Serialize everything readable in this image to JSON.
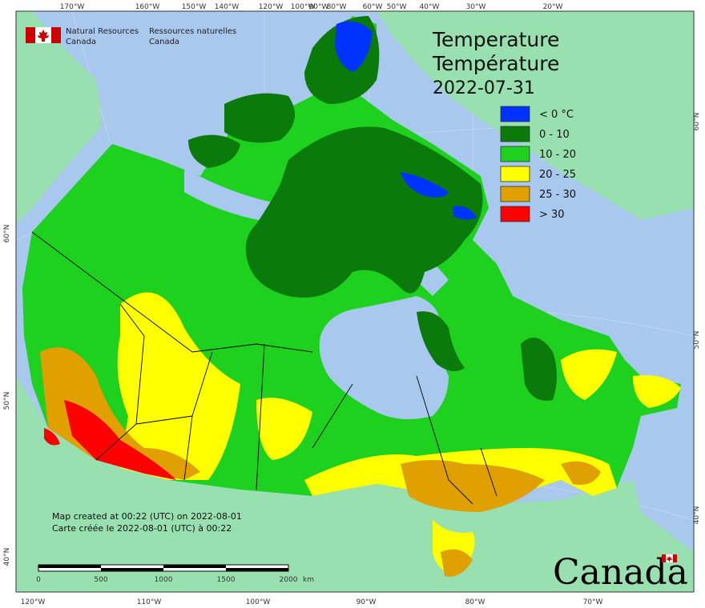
{
  "map": {
    "title_en": "Temperature",
    "title_fr": "Température",
    "date": "2022-07-31",
    "legend": [
      {
        "label": "< 0 °C",
        "color": "#0033ff"
      },
      {
        "label": "0 - 10",
        "color": "#0a7a0a"
      },
      {
        "label": "10 - 20",
        "color": "#1ed11e"
      },
      {
        "label": "20 - 25",
        "color": "#ffff00"
      },
      {
        "label": "25 - 30",
        "color": "#e0a000"
      },
      {
        "label": "> 30",
        "color": "#ff0000"
      }
    ],
    "colors": {
      "ocean": "#a9c8ee",
      "land_other": "#98e0b0",
      "border": "#000000"
    }
  },
  "org": {
    "en_line1": "Natural Resources",
    "en_line2": "Canada",
    "fr_line1": "Ressources naturelles",
    "fr_line2": "Canada"
  },
  "note": {
    "en": "Map created at 00:22 (UTC) on 2022-08-01",
    "fr": "Carte créée le 2022-08-01 (UTC) à 00:22"
  },
  "scale": {
    "labels": [
      "0",
      "500",
      "1000",
      "1500",
      "2000"
    ],
    "unit": "km"
  },
  "ticks": {
    "top": [
      "170°W",
      "160°W",
      "150°W",
      "140°W",
      "120°W",
      "100°W",
      "90°W",
      "80°W",
      "60°W",
      "50°W",
      "40°W",
      "30°W",
      "20°W"
    ],
    "bottom": [
      "120°W",
      "110°W",
      "100°W",
      "90°W",
      "80°W",
      "70°W"
    ],
    "left": [
      "60°N",
      "50°N",
      "40°N"
    ],
    "right": [
      "60°N",
      "50°N",
      "40°N"
    ]
  },
  "wordmark": "Canada"
}
